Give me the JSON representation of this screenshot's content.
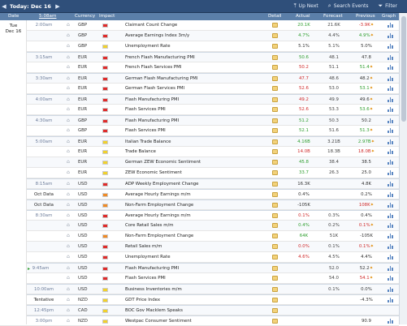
{
  "topbar": {
    "title": "Today: Dec 16",
    "prev_icon": "triangle-left-icon",
    "next_icon": "triangle-right-icon",
    "buttons": [
      {
        "label": "Up Next",
        "icon": "up-arrow-icon"
      },
      {
        "label": "Search Events",
        "icon": "search-icon"
      },
      {
        "label": "Filter",
        "icon": "filter-icon"
      }
    ]
  },
  "headers": {
    "date": "Date",
    "time": "5:08am",
    "currency": "Currency",
    "impact": "Impact",
    "detail": "Detail",
    "actual": "Actual",
    "forecast": "Forecast",
    "previous": "Previous",
    "graph": "Graph"
  },
  "day": {
    "weekday": "Tue",
    "date": "Dec 16"
  },
  "colors": {
    "impact_high": "#e02a2a",
    "impact_medium": "#f08a24",
    "impact_low": "#f1d12b",
    "positive": "#2f9e2f",
    "negative": "#d02b2b",
    "header_bg": "#5b7fa9",
    "topbar_bg": "#2f4f7a"
  },
  "rows": [
    {
      "time": "2:00am",
      "currency": "GBP",
      "impact": "high",
      "event": "Claimant Count Change",
      "detail": "yellow",
      "actual": "20.1K",
      "actual_class": "pos",
      "forecast": "21.6K",
      "previous": "-3.9K",
      "prev_class": "neg",
      "prev_rev": "✦"
    },
    {
      "time": "",
      "currency": "GBP",
      "impact": "high",
      "event": "Average Earnings Index 3m/y",
      "detail": "yellow",
      "actual": "4.7%",
      "actual_class": "pos",
      "forecast": "4.4%",
      "previous": "4.9%",
      "prev_class": "pos",
      "prev_rev": "✦"
    },
    {
      "time": "",
      "currency": "GBP",
      "impact": "low",
      "event": "Unemployment Rate",
      "detail": "yellow",
      "actual": "5.1%",
      "actual_class": "neu",
      "forecast": "5.1%",
      "previous": "5.0%",
      "prev_class": "neu",
      "prev_rev": ""
    },
    {
      "time": "3:15am",
      "currency": "EUR",
      "impact": "high",
      "event": "French Flash Manufacturing PMI",
      "detail": "yellow",
      "actual": "50.6",
      "actual_class": "pos",
      "forecast": "48.1",
      "previous": "47.8",
      "prev_class": "neu",
      "prev_rev": "",
      "group": true
    },
    {
      "time": "",
      "currency": "EUR",
      "impact": "high",
      "event": "French Flash Services PMI",
      "detail": "yellow",
      "actual": "50.2",
      "actual_class": "neg",
      "forecast": "51.1",
      "previous": "51.4",
      "prev_class": "pos",
      "prev_rev": "✦"
    },
    {
      "time": "3:30am",
      "currency": "EUR",
      "impact": "high",
      "event": "German Flash Manufacturing PMI",
      "detail": "yellow",
      "actual": "47.7",
      "actual_class": "neg",
      "forecast": "48.6",
      "previous": "48.2",
      "prev_class": "neu",
      "prev_rev": "✦",
      "group": true
    },
    {
      "time": "",
      "currency": "EUR",
      "impact": "high",
      "event": "German Flash Services PMI",
      "detail": "yellow",
      "actual": "52.6",
      "actual_class": "neg",
      "forecast": "53.0",
      "previous": "53.1",
      "prev_class": "pos",
      "prev_rev": "✦"
    },
    {
      "time": "4:00am",
      "currency": "EUR",
      "impact": "high",
      "event": "Flash Manufacturing PMI",
      "detail": "yellow",
      "actual": "49.2",
      "actual_class": "neg",
      "forecast": "49.9",
      "previous": "49.6",
      "prev_class": "neu",
      "prev_rev": "✦",
      "group": true
    },
    {
      "time": "",
      "currency": "EUR",
      "impact": "high",
      "event": "Flash Services PMI",
      "detail": "yellow",
      "actual": "52.6",
      "actual_class": "neg",
      "forecast": "53.3",
      "previous": "53.6",
      "prev_class": "pos",
      "prev_rev": "✦"
    },
    {
      "time": "4:30am",
      "currency": "GBP",
      "impact": "high",
      "event": "Flash Manufacturing PMI",
      "detail": "yellow",
      "actual": "51.2",
      "actual_class": "pos",
      "forecast": "50.3",
      "previous": "50.2",
      "prev_class": "neu",
      "prev_rev": "",
      "group": true
    },
    {
      "time": "",
      "currency": "GBP",
      "impact": "high",
      "event": "Flash Services PMI",
      "detail": "yellow",
      "actual": "52.1",
      "actual_class": "pos",
      "forecast": "51.6",
      "previous": "51.3",
      "prev_class": "pos",
      "prev_rev": "✦"
    },
    {
      "time": "5:00am",
      "currency": "EUR",
      "impact": "low",
      "event": "Italian Trade Balance",
      "detail": "yellow",
      "actual": "4.16B",
      "actual_class": "pos",
      "forecast": "3.21B",
      "previous": "2.97B",
      "prev_class": "pos",
      "prev_rev": "✦",
      "group": true
    },
    {
      "time": "",
      "currency": "EUR",
      "impact": "low",
      "event": "Trade Balance",
      "detail": "yellow",
      "actual": "14.0B",
      "actual_class": "neg",
      "forecast": "18.3B",
      "previous": "18.0B",
      "prev_class": "neg",
      "prev_rev": "✦"
    },
    {
      "time": "",
      "currency": "EUR",
      "impact": "low",
      "event": "German ZEW Economic Sentiment",
      "detail": "yellow",
      "actual": "45.8",
      "actual_class": "pos",
      "forecast": "38.4",
      "previous": "38.5",
      "prev_class": "neu",
      "prev_rev": ""
    },
    {
      "time": "",
      "currency": "EUR",
      "impact": "low",
      "event": "ZEW Economic Sentiment",
      "detail": "yellow",
      "actual": "33.7",
      "actual_class": "pos",
      "forecast": "26.3",
      "previous": "25.0",
      "prev_class": "neu",
      "prev_rev": ""
    },
    {
      "time": "8:15am",
      "currency": "USD",
      "impact": "high",
      "event": "ADP Weekly Employment Change",
      "detail": "yellow",
      "actual": "16.3K",
      "actual_class": "neu",
      "forecast": "",
      "previous": "4.8K",
      "prev_class": "neu",
      "prev_rev": "",
      "group": true
    },
    {
      "time": "Oct Data",
      "currency": "USD",
      "impact": "medium",
      "event": "Average Hourly Earnings m/m",
      "detail": "yellow",
      "actual": "0.4%",
      "actual_class": "neu",
      "forecast": "",
      "previous": "0.2%",
      "prev_class": "neu",
      "prev_rev": "",
      "group": true
    },
    {
      "time": "Oct Data",
      "currency": "USD",
      "impact": "medium",
      "event": "Non-Farm Employment Change",
      "detail": "yellow",
      "actual": "-105K",
      "actual_class": "neu",
      "forecast": "",
      "previous": "108K",
      "prev_class": "neg",
      "prev_rev": "✦",
      "group": true
    },
    {
      "time": "8:30am",
      "currency": "USD",
      "impact": "high",
      "event": "Average Hourly Earnings m/m",
      "detail": "yellow",
      "actual": "0.1%",
      "actual_class": "neg",
      "forecast": "0.3%",
      "previous": "0.4%",
      "prev_class": "neu",
      "prev_rev": "",
      "group": true
    },
    {
      "time": "",
      "currency": "USD",
      "impact": "high",
      "event": "Core Retail Sales m/m",
      "detail": "yellow",
      "actual": "0.4%",
      "actual_class": "pos",
      "forecast": "0.2%",
      "previous": "0.1%",
      "prev_class": "neg",
      "prev_rev": "✦"
    },
    {
      "time": "",
      "currency": "USD",
      "impact": "medium",
      "event": "Non-Farm Employment Change",
      "detail": "yellow",
      "actual": "64K",
      "actual_class": "pos",
      "forecast": "51K",
      "previous": "-105K",
      "prev_class": "neu",
      "prev_rev": ""
    },
    {
      "time": "",
      "currency": "USD",
      "impact": "high",
      "event": "Retail Sales m/m",
      "detail": "yellow",
      "actual": "0.0%",
      "actual_class": "neg",
      "forecast": "0.1%",
      "previous": "0.1%",
      "prev_class": "neg",
      "prev_rev": "✦"
    },
    {
      "time": "",
      "currency": "USD",
      "impact": "high",
      "event": "Unemployment Rate",
      "detail": "yellow",
      "actual": "4.6%",
      "actual_class": "neg",
      "forecast": "4.5%",
      "previous": "4.4%",
      "prev_class": "neu",
      "prev_rev": ""
    },
    {
      "time": "9:45am",
      "currency": "USD",
      "impact": "high",
      "event": "Flash Manufacturing PMI",
      "detail": "yellow",
      "actual": "",
      "actual_class": "neu",
      "forecast": "52.0",
      "previous": "52.2",
      "prev_class": "neu",
      "prev_rev": "✦",
      "group": true,
      "upnext": true
    },
    {
      "time": "",
      "currency": "USD",
      "impact": "high",
      "event": "Flash Services PMI",
      "detail": "yellow",
      "actual": "",
      "actual_class": "neu",
      "forecast": "54.0",
      "previous": "54.1",
      "prev_class": "neg",
      "prev_rev": "✦"
    },
    {
      "time": "10:00am",
      "currency": "USD",
      "impact": "low",
      "event": "Business Inventories m/m",
      "detail": "yellow",
      "actual": "",
      "actual_class": "neu",
      "forecast": "0.1%",
      "previous": "0.0%",
      "prev_class": "neu",
      "prev_rev": "",
      "group": true
    },
    {
      "time": "Tentative",
      "currency": "NZD",
      "impact": "low",
      "event": "GDT Price Index",
      "detail": "yellow",
      "actual": "",
      "actual_class": "neu",
      "forecast": "",
      "previous": "-4.3%",
      "prev_class": "neu",
      "prev_rev": "",
      "group": true
    },
    {
      "time": "12:45pm",
      "currency": "CAD",
      "impact": "low",
      "event": "BOC Gov Macklem Speaks",
      "detail": "yellow",
      "actual": "",
      "actual_class": "neu",
      "forecast": "",
      "previous": "",
      "prev_class": "neu",
      "prev_rev": "",
      "group": true,
      "no_graph": true
    },
    {
      "time": "3:00pm",
      "currency": "NZD",
      "impact": "low",
      "event": "Westpac Consumer Sentiment",
      "detail": "yellow",
      "actual": "",
      "actual_class": "neu",
      "forecast": "",
      "previous": "90.9",
      "prev_class": "neu",
      "prev_rev": "",
      "group": true
    }
  ]
}
